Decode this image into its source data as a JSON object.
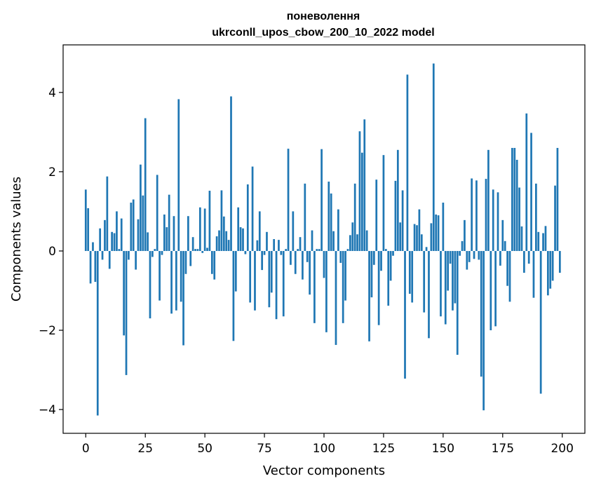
{
  "chart_data": {
    "type": "bar",
    "title": "поневолення",
    "subtitle": "ukrconll_upos_cbow_200_10_2022 model",
    "xlabel": "Vector components",
    "ylabel": "Components values",
    "xlim": [
      -9.5,
      209.5
    ],
    "ylim": [
      -4.6,
      5.2
    ],
    "xticks": [
      0,
      25,
      50,
      75,
      100,
      125,
      150,
      175,
      200
    ],
    "yticks": [
      -4,
      -2,
      0,
      2,
      4
    ],
    "ytick_labels": [
      "−4",
      "−2",
      "0",
      "2",
      "4"
    ],
    "bar_color": "#1f77b4",
    "grid": false,
    "x": [
      0,
      1,
      2,
      3,
      4,
      5,
      6,
      7,
      8,
      9,
      10,
      11,
      12,
      13,
      14,
      15,
      16,
      17,
      18,
      19,
      20,
      21,
      22,
      23,
      24,
      25,
      26,
      27,
      28,
      29,
      30,
      31,
      32,
      33,
      34,
      35,
      36,
      37,
      38,
      39,
      40,
      41,
      42,
      43,
      44,
      45,
      46,
      47,
      48,
      49,
      50,
      51,
      52,
      53,
      54,
      55,
      56,
      57,
      58,
      59,
      60,
      61,
      62,
      63,
      64,
      65,
      66,
      67,
      68,
      69,
      70,
      71,
      72,
      73,
      74,
      75,
      76,
      77,
      78,
      79,
      80,
      81,
      82,
      83,
      84,
      85,
      86,
      87,
      88,
      89,
      90,
      91,
      92,
      93,
      94,
      95,
      96,
      97,
      98,
      99,
      100,
      101,
      102,
      103,
      104,
      105,
      106,
      107,
      108,
      109,
      110,
      111,
      112,
      113,
      114,
      115,
      116,
      117,
      118,
      119,
      120,
      121,
      122,
      123,
      124,
      125,
      126,
      127,
      128,
      129,
      130,
      131,
      132,
      133,
      134,
      135,
      136,
      137,
      138,
      139,
      140,
      141,
      142,
      143,
      144,
      145,
      146,
      147,
      148,
      149,
      150,
      151,
      152,
      153,
      154,
      155,
      156,
      157,
      158,
      159,
      160,
      161,
      162,
      163,
      164,
      165,
      166,
      167,
      168,
      169,
      170,
      171,
      172,
      173,
      174,
      175,
      176,
      177,
      178,
      179,
      180,
      181,
      182,
      183,
      184,
      185,
      186,
      187,
      188,
      189,
      190,
      191,
      192,
      193,
      194,
      195,
      196,
      197,
      198,
      199
    ],
    "values": [
      1.55,
      1.08,
      -0.82,
      0.22,
      -0.78,
      -4.15,
      0.57,
      -0.22,
      0.78,
      1.88,
      -0.45,
      0.48,
      0.45,
      1.0,
      0.05,
      0.82,
      -2.13,
      -3.13,
      -0.22,
      1.22,
      1.3,
      -0.47,
      0.8,
      2.18,
      1.4,
      3.35,
      0.47,
      -1.7,
      -0.15,
      0.05,
      1.92,
      -1.25,
      -0.1,
      0.92,
      0.6,
      1.42,
      -1.58,
      0.88,
      -1.5,
      3.83,
      -1.28,
      -2.38,
      -0.58,
      0.88,
      -0.38,
      0.35,
      0.05,
      0.05,
      1.1,
      -0.05,
      1.07,
      0.08,
      1.52,
      -0.58,
      -0.72,
      0.37,
      0.52,
      1.53,
      0.87,
      0.5,
      0.28,
      3.9,
      -2.27,
      -1.02,
      1.1,
      0.6,
      0.57,
      -0.08,
      1.68,
      -1.3,
      2.13,
      -1.5,
      0.27,
      1.0,
      -0.48,
      -0.1,
      0.48,
      -1.42,
      -1.05,
      0.3,
      -1.72,
      0.28,
      -0.1,
      -1.65,
      0.05,
      2.58,
      -0.35,
      1.0,
      -0.58,
      0.05,
      0.35,
      -0.72,
      1.7,
      -0.28,
      -1.1,
      0.52,
      -1.82,
      0.05,
      0.05,
      2.57,
      -0.68,
      -2.05,
      1.75,
      1.45,
      0.5,
      -2.37,
      1.05,
      -0.3,
      -1.82,
      -1.25,
      0.05,
      0.4,
      0.72,
      1.7,
      0.42,
      3.02,
      2.48,
      3.32,
      0.52,
      -2.28,
      -1.17,
      -0.35,
      1.8,
      -1.87,
      -0.5,
      2.42,
      0.05,
      -1.38,
      -0.75,
      -0.12,
      1.77,
      2.55,
      0.72,
      1.53,
      -3.22,
      4.45,
      -1.08,
      -1.3,
      0.68,
      0.65,
      1.05,
      0.42,
      -1.55,
      0.1,
      -2.2,
      0.7,
      4.73,
      0.92,
      0.9,
      -1.65,
      1.22,
      -1.85,
      -1.0,
      -0.32,
      -1.5,
      -1.32,
      -2.62,
      -0.12,
      0.25,
      0.78,
      -0.47,
      -0.28,
      1.83,
      -0.2,
      1.78,
      -0.22,
      -3.17,
      -4.02,
      1.82,
      2.55,
      -2.0,
      1.55,
      -1.9,
      1.48,
      -0.37,
      0.78,
      0.25,
      -0.88,
      -1.28,
      2.6,
      2.6,
      2.3,
      1.6,
      0.62,
      -0.55,
      3.47,
      -0.32,
      2.98,
      -1.18,
      1.7,
      0.48,
      -3.6,
      0.45,
      0.63,
      -1.12,
      -0.95,
      -0.75,
      1.65,
      2.6,
      -0.55
    ]
  }
}
